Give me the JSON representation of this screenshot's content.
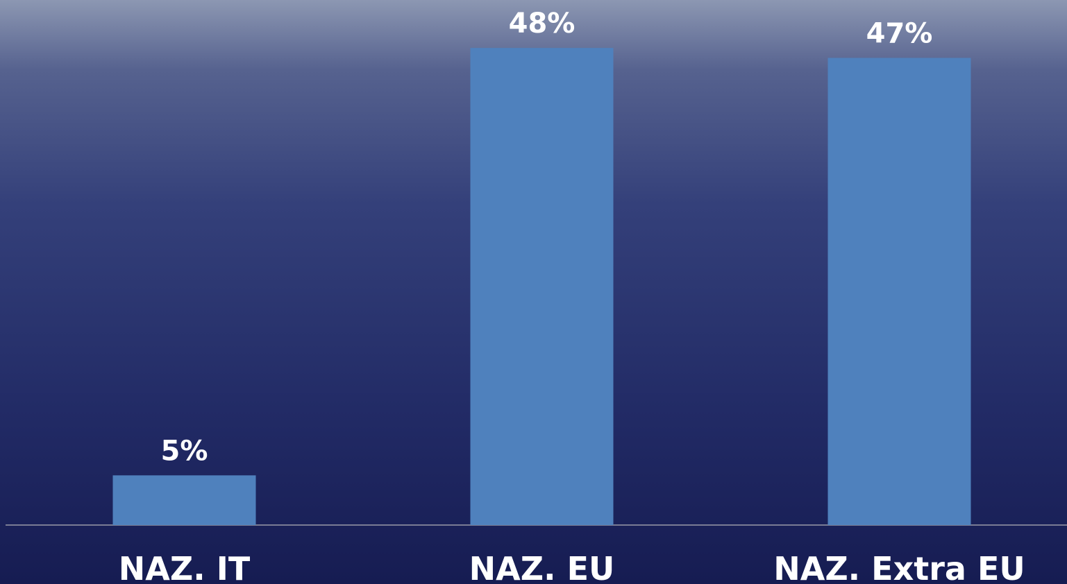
{
  "chart_data": {
    "type": "bar",
    "categories": [
      "NAZ. IT",
      "NAZ. EU",
      "NAZ. Extra EU"
    ],
    "values": [
      5,
      48,
      47
    ],
    "value_labels": [
      "5%",
      "48%",
      "47%"
    ],
    "color": "#4f81bd"
  }
}
